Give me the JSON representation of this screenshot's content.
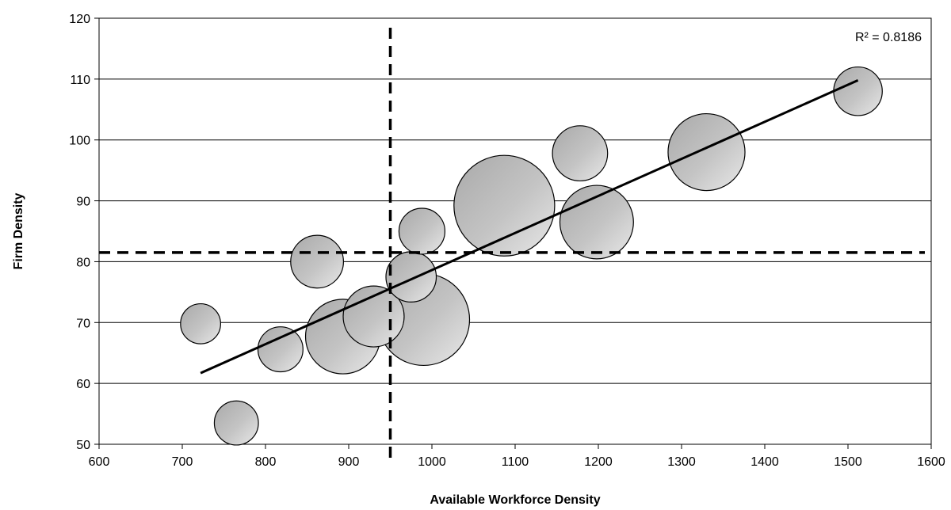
{
  "chart_data": {
    "type": "scatter",
    "subtype": "bubble",
    "xlabel": "Available Workforce Density",
    "ylabel": "Firm Density",
    "xlim": [
      600,
      1600
    ],
    "ylim": [
      50,
      120
    ],
    "x_ticks": [
      600,
      700,
      800,
      900,
      1000,
      1100,
      1200,
      1300,
      1400,
      1500,
      1600
    ],
    "y_ticks": [
      50,
      60,
      70,
      80,
      90,
      100,
      110,
      120
    ],
    "grid": "horizontal",
    "points": [
      {
        "x": 765,
        "y": 53.5,
        "size": 0.23
      },
      {
        "x": 722,
        "y": 69.8,
        "size": 0.19
      },
      {
        "x": 818,
        "y": 65.6,
        "size": 0.24
      },
      {
        "x": 862,
        "y": 80.0,
        "size": 0.33
      },
      {
        "x": 893,
        "y": 67.7,
        "size": 0.66
      },
      {
        "x": 930,
        "y": 71.0,
        "size": 0.44
      },
      {
        "x": 990,
        "y": 70.5,
        "size": 1.0
      },
      {
        "x": 975,
        "y": 77.5,
        "size": 0.3
      },
      {
        "x": 988,
        "y": 85.0,
        "size": 0.25
      },
      {
        "x": 1087,
        "y": 89.2,
        "size": 1.2
      },
      {
        "x": 1178,
        "y": 97.8,
        "size": 0.36
      },
      {
        "x": 1198,
        "y": 86.5,
        "size": 0.64
      },
      {
        "x": 1330,
        "y": 98.0,
        "size": 0.7
      },
      {
        "x": 1512,
        "y": 108.0,
        "size": 0.28
      }
    ],
    "trendline": {
      "x": [
        722,
        1512
      ],
      "y": [
        61.7,
        109.8
      ]
    },
    "reference_lines": {
      "vertical_x": 950,
      "horizontal_y": 81.5
    },
    "annotation": "R² = 0.8186",
    "colors": {
      "bubble_fill": "#b8b8b8",
      "bubble_highlight": "#e6e6e6",
      "bubble_stroke": "#000000",
      "line": "#000000",
      "grid": "#000000"
    }
  }
}
